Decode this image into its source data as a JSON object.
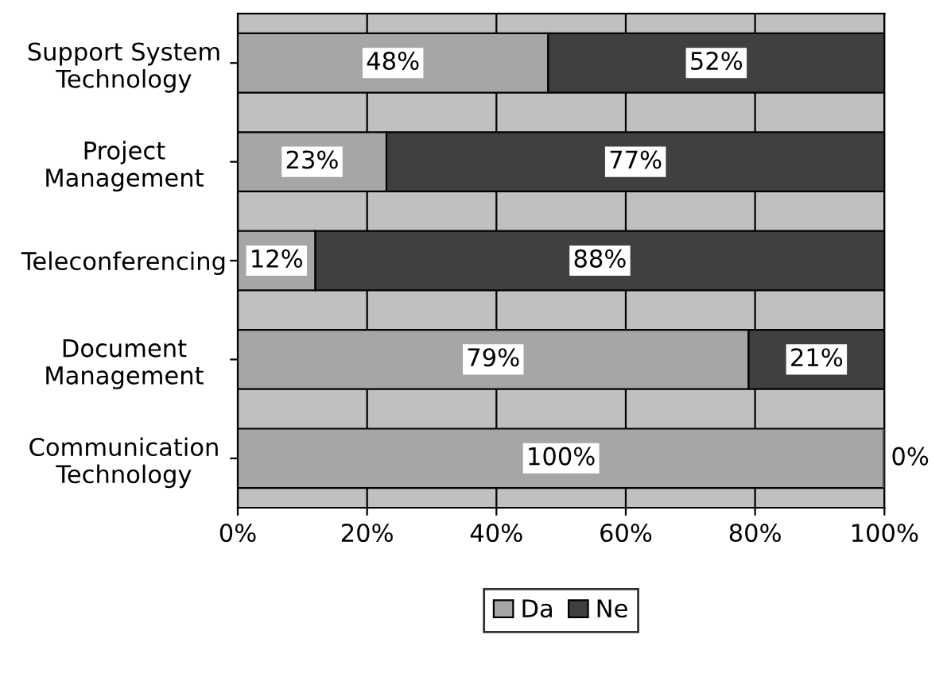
{
  "chart_data": {
    "type": "bar",
    "orientation": "horizontal",
    "stacked": true,
    "categories": [
      "Support System\nTechnology",
      "Project\nManagement",
      "Teleconferencing",
      "Document\nManagement",
      "Communication\nTechnology"
    ],
    "series": [
      {
        "name": "Da",
        "color": "#a6a6a6",
        "values": [
          48,
          23,
          12,
          79,
          100
        ],
        "value_labels": [
          "48%",
          "23%",
          "12%",
          "79%",
          "100%"
        ]
      },
      {
        "name": "Ne",
        "color": "#404040",
        "values": [
          52,
          77,
          88,
          21,
          0
        ],
        "value_labels": [
          "52%",
          "77%",
          "88%",
          "21%",
          "0%"
        ]
      }
    ],
    "xlim": [
      0,
      100
    ],
    "xticks": [
      {
        "value": 0,
        "label": "0%"
      },
      {
        "value": 20,
        "label": "20%"
      },
      {
        "value": 40,
        "label": "40%"
      },
      {
        "value": 60,
        "label": "60%"
      },
      {
        "value": 80,
        "label": "80%"
      },
      {
        "value": 100,
        "label": "100%"
      }
    ],
    "grid": "x",
    "legend": "bottom"
  }
}
